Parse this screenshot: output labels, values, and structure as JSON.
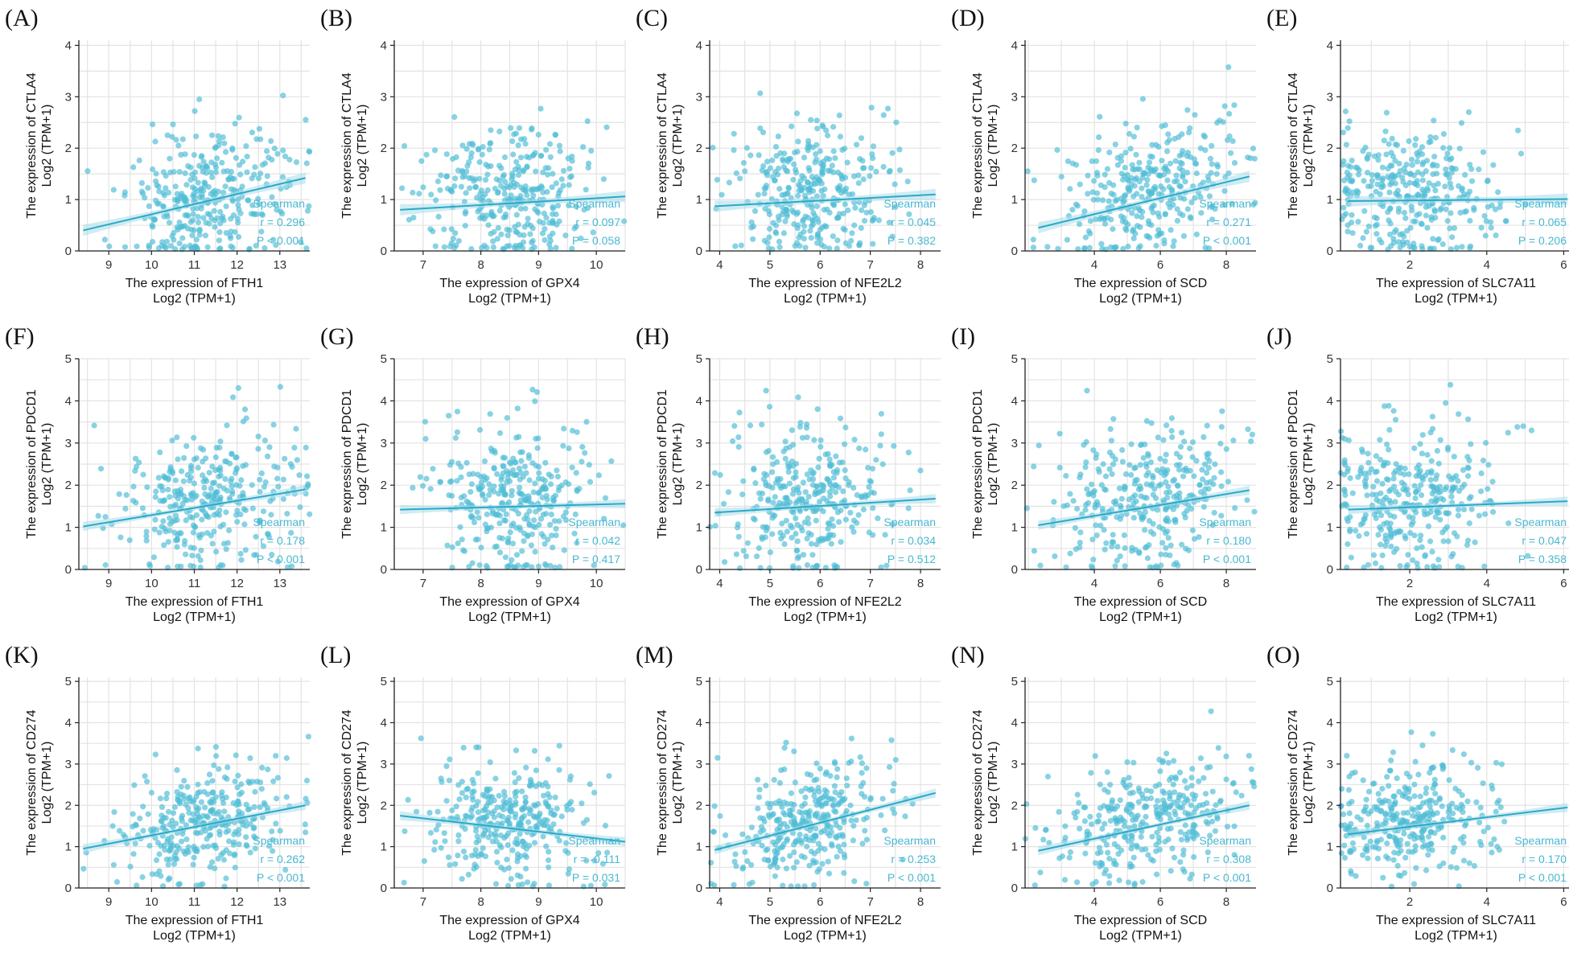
{
  "figure": {
    "stat_method": "Spearman",
    "y_subtitle": "Log2 (TPM+1)",
    "x_subtitle": "Log2 (TPM+1)",
    "x_prefix": "The expression of",
    "y_prefix": "The expression of",
    "colors": {
      "point": "#4fbdd5",
      "line": "#2aa9c8",
      "band": "#a9dde9",
      "grid": "#e3e3e3",
      "stat_text": "#48b8d2",
      "axis": "#222222"
    }
  },
  "chart_data": [
    {
      "panel": "(A)",
      "type": "scatter",
      "x_gene": "FTH1",
      "y_gene": "CTLA4",
      "xlabel": "The expression of FTH1",
      "ylabel": "The expression of CTLA4",
      "xlim": [
        8.3,
        13.7
      ],
      "ylim": [
        0,
        4.1
      ],
      "xticks": [
        9,
        10,
        11,
        12,
        13
      ],
      "yticks": [
        0,
        1,
        2,
        3,
        4
      ],
      "x_center": 11.3,
      "x_sd": 1.0,
      "y_center": 0.95,
      "y_sd": 0.72,
      "fit": {
        "x": [
          8.4,
          13.6
        ],
        "y": [
          0.4,
          1.42
        ]
      },
      "r": "r = 0.296",
      "p": "P < 0.001"
    },
    {
      "panel": "(B)",
      "type": "scatter",
      "x_gene": "GPX4",
      "y_gene": "CTLA4",
      "xlabel": "The expression of GPX4",
      "ylabel": "The expression of CTLA4",
      "xlim": [
        6.5,
        10.5
      ],
      "ylim": [
        0,
        4.1
      ],
      "xticks": [
        7,
        8,
        9,
        10
      ],
      "yticks": [
        0,
        1,
        2,
        3,
        4
      ],
      "x_center": 8.5,
      "x_sd": 0.7,
      "y_center": 0.95,
      "y_sd": 0.72,
      "fit": {
        "x": [
          6.6,
          10.5
        ],
        "y": [
          0.8,
          1.06
        ]
      },
      "r": "r = 0.097",
      "p": "P = 0.058"
    },
    {
      "panel": "(C)",
      "type": "scatter",
      "x_gene": "NFE2L2",
      "y_gene": "CTLA4",
      "xlabel": "The expression of NFE2L2",
      "ylabel": "The expression of CTLA4",
      "xlim": [
        3.8,
        8.4
      ],
      "ylim": [
        0,
        4.1
      ],
      "xticks": [
        4,
        5,
        6,
        7,
        8
      ],
      "yticks": [
        0,
        1,
        2,
        3,
        4
      ],
      "x_center": 5.8,
      "x_sd": 0.8,
      "y_center": 0.95,
      "y_sd": 0.72,
      "fit": {
        "x": [
          3.9,
          8.3
        ],
        "y": [
          0.87,
          1.1
        ]
      },
      "r": "r = 0.045",
      "p": "P = 0.382"
    },
    {
      "panel": "(D)",
      "type": "scatter",
      "x_gene": "SCD",
      "y_gene": "CTLA4",
      "xlabel": "The expression of SCD",
      "ylabel": "The expression of CTLA4",
      "xlim": [
        1.9,
        8.9
      ],
      "ylim": [
        0,
        4.1
      ],
      "xticks": [
        4,
        6,
        8
      ],
      "yticks": [
        0,
        1,
        2,
        3,
        4
      ],
      "x_center": 5.6,
      "x_sd": 1.4,
      "y_center": 0.95,
      "y_sd": 0.72,
      "fit": {
        "x": [
          2.3,
          8.7
        ],
        "y": [
          0.45,
          1.45
        ]
      },
      "r": "r = 0.271",
      "p": "P < 0.001"
    },
    {
      "panel": "(E)",
      "type": "scatter",
      "x_gene": "SLC7A11",
      "y_gene": "CTLA4",
      "xlabel": "The expression of SLC7A11",
      "ylabel": "The expression of CTLA4",
      "xlim": [
        0.2,
        6.2
      ],
      "ylim": [
        0,
        4.1
      ],
      "xticks": [
        2,
        4,
        6
      ],
      "yticks": [
        0,
        1,
        2,
        3,
        4
      ],
      "x_center": 2.0,
      "x_sd": 1.1,
      "y_center": 0.95,
      "y_sd": 0.72,
      "fit": {
        "x": [
          0.4,
          6.1
        ],
        "y": [
          0.97,
          1.01
        ]
      },
      "r": "r = 0.065",
      "p": "P = 0.206"
    },
    {
      "panel": "(F)",
      "type": "scatter",
      "x_gene": "FTH1",
      "y_gene": "PDCD1",
      "xlabel": "The expression of FTH1",
      "ylabel": "The expression of PDCD1",
      "xlim": [
        8.3,
        13.7
      ],
      "ylim": [
        0,
        5
      ],
      "xticks": [
        9,
        10,
        11,
        12,
        13
      ],
      "yticks": [
        0,
        1,
        2,
        3,
        4,
        5
      ],
      "x_center": 11.3,
      "x_sd": 1.0,
      "y_center": 1.45,
      "y_sd": 0.95,
      "fit": {
        "x": [
          8.4,
          13.6
        ],
        "y": [
          1.02,
          1.9
        ]
      },
      "r": "r = 0.178",
      "p": "P < 0.001"
    },
    {
      "panel": "(G)",
      "type": "scatter",
      "x_gene": "GPX4",
      "y_gene": "PDCD1",
      "xlabel": "The expression of GPX4",
      "ylabel": "The expression of PDCD1",
      "xlim": [
        6.5,
        10.5
      ],
      "ylim": [
        0,
        5
      ],
      "xticks": [
        7,
        8,
        9,
        10
      ],
      "yticks": [
        0,
        1,
        2,
        3,
        4,
        5
      ],
      "x_center": 8.5,
      "x_sd": 0.7,
      "y_center": 1.45,
      "y_sd": 0.95,
      "fit": {
        "x": [
          6.6,
          10.5
        ],
        "y": [
          1.42,
          1.56
        ]
      },
      "r": "r = 0.042",
      "p": "P = 0.417"
    },
    {
      "panel": "(H)",
      "type": "scatter",
      "x_gene": "NFE2L2",
      "y_gene": "PDCD1",
      "xlabel": "The expression of NFE2L2",
      "ylabel": "The expression of PDCD1",
      "xlim": [
        3.8,
        8.4
      ],
      "ylim": [
        0,
        5
      ],
      "xticks": [
        4,
        5,
        6,
        7,
        8
      ],
      "yticks": [
        0,
        1,
        2,
        3,
        4,
        5
      ],
      "x_center": 5.8,
      "x_sd": 0.8,
      "y_center": 1.45,
      "y_sd": 0.95,
      "fit": {
        "x": [
          3.9,
          8.3
        ],
        "y": [
          1.35,
          1.68
        ]
      },
      "r": "r = 0.034",
      "p": "P = 0.512"
    },
    {
      "panel": "(I)",
      "type": "scatter",
      "x_gene": "SCD",
      "y_gene": "PDCD1",
      "xlabel": "The expression of SCD",
      "ylabel": "The expression of PDCD1",
      "xlim": [
        1.9,
        8.9
      ],
      "ylim": [
        0,
        5
      ],
      "xticks": [
        4,
        6,
        8
      ],
      "yticks": [
        0,
        1,
        2,
        3,
        4,
        5
      ],
      "x_center": 5.6,
      "x_sd": 1.4,
      "y_center": 1.45,
      "y_sd": 0.95,
      "fit": {
        "x": [
          2.3,
          8.7
        ],
        "y": [
          1.05,
          1.88
        ]
      },
      "r": "r = 0.180",
      "p": "P < 0.001"
    },
    {
      "panel": "(J)",
      "type": "scatter",
      "x_gene": "SLC7A11",
      "y_gene": "PDCD1",
      "xlabel": "The expression of SLC7A11",
      "ylabel": "The expression of PDCD1",
      "xlim": [
        0.2,
        6.2
      ],
      "ylim": [
        0,
        5
      ],
      "xticks": [
        2,
        4,
        6
      ],
      "yticks": [
        0,
        1,
        2,
        3,
        4,
        5
      ],
      "x_center": 2.0,
      "x_sd": 1.1,
      "y_center": 1.45,
      "y_sd": 0.95,
      "fit": {
        "x": [
          0.4,
          6.1
        ],
        "y": [
          1.42,
          1.62
        ]
      },
      "r": "r = 0.047",
      "p": "P = 0.358"
    },
    {
      "panel": "(K)",
      "type": "scatter",
      "x_gene": "FTH1",
      "y_gene": "CD274",
      "xlabel": "The expression of FTH1",
      "ylabel": "The expression of CD274",
      "xlim": [
        8.3,
        13.7
      ],
      "ylim": [
        0,
        5.1
      ],
      "xticks": [
        9,
        10,
        11,
        12,
        13
      ],
      "yticks": [
        0,
        1,
        2,
        3,
        4,
        5
      ],
      "x_center": 11.3,
      "x_sd": 1.0,
      "y_center": 1.45,
      "y_sd": 0.75,
      "fit": {
        "x": [
          8.4,
          13.6
        ],
        "y": [
          0.95,
          2.0
        ]
      },
      "r": "r = 0.262",
      "p": "P < 0.001"
    },
    {
      "panel": "(L)",
      "type": "scatter",
      "x_gene": "GPX4",
      "y_gene": "CD274",
      "xlabel": "The expression of GPX4",
      "ylabel": "The expression of CD274",
      "xlim": [
        6.5,
        10.5
      ],
      "ylim": [
        0,
        5.1
      ],
      "xticks": [
        7,
        8,
        9,
        10
      ],
      "yticks": [
        0,
        1,
        2,
        3,
        4,
        5
      ],
      "x_center": 8.5,
      "x_sd": 0.7,
      "y_center": 1.45,
      "y_sd": 0.75,
      "fit": {
        "x": [
          6.6,
          10.5
        ],
        "y": [
          1.75,
          1.12
        ]
      },
      "r": "r = -0.111",
      "p": "P = 0.031"
    },
    {
      "panel": "(M)",
      "type": "scatter",
      "x_gene": "NFE2L2",
      "y_gene": "CD274",
      "xlabel": "The expression of NFE2L2",
      "ylabel": "The expression of CD274",
      "xlim": [
        3.8,
        8.4
      ],
      "ylim": [
        0,
        5.1
      ],
      "xticks": [
        4,
        5,
        6,
        7,
        8
      ],
      "yticks": [
        0,
        1,
        2,
        3,
        4,
        5
      ],
      "x_center": 5.8,
      "x_sd": 0.8,
      "y_center": 1.45,
      "y_sd": 0.75,
      "fit": {
        "x": [
          3.9,
          8.3
        ],
        "y": [
          0.92,
          2.3
        ]
      },
      "r": "r = 0.253",
      "p": "P < 0.001"
    },
    {
      "panel": "(N)",
      "type": "scatter",
      "x_gene": "SCD",
      "y_gene": "CD274",
      "xlabel": "The expression of SCD",
      "ylabel": "The expression of CD274",
      "xlim": [
        1.9,
        8.9
      ],
      "ylim": [
        0,
        5.1
      ],
      "xticks": [
        4,
        6,
        8
      ],
      "yticks": [
        0,
        1,
        2,
        3,
        4,
        5
      ],
      "x_center": 5.6,
      "x_sd": 1.4,
      "y_center": 1.45,
      "y_sd": 0.75,
      "fit": {
        "x": [
          2.3,
          8.7
        ],
        "y": [
          0.9,
          2.0
        ]
      },
      "r": "r = 0.308",
      "p": "P < 0.001"
    },
    {
      "panel": "(O)",
      "type": "scatter",
      "x_gene": "SLC7A11",
      "y_gene": "CD274",
      "xlabel": "The expression of SLC7A11",
      "ylabel": "The expression of CD274",
      "xlim": [
        0.2,
        6.2
      ],
      "ylim": [
        0,
        5.1
      ],
      "xticks": [
        2,
        4,
        6
      ],
      "yticks": [
        0,
        1,
        2,
        3,
        4,
        5
      ],
      "x_center": 2.0,
      "x_sd": 1.1,
      "y_center": 1.45,
      "y_sd": 0.75,
      "fit": {
        "x": [
          0.4,
          6.1
        ],
        "y": [
          1.3,
          1.95
        ]
      },
      "r": "r = 0.170",
      "p": "P < 0.001"
    }
  ]
}
